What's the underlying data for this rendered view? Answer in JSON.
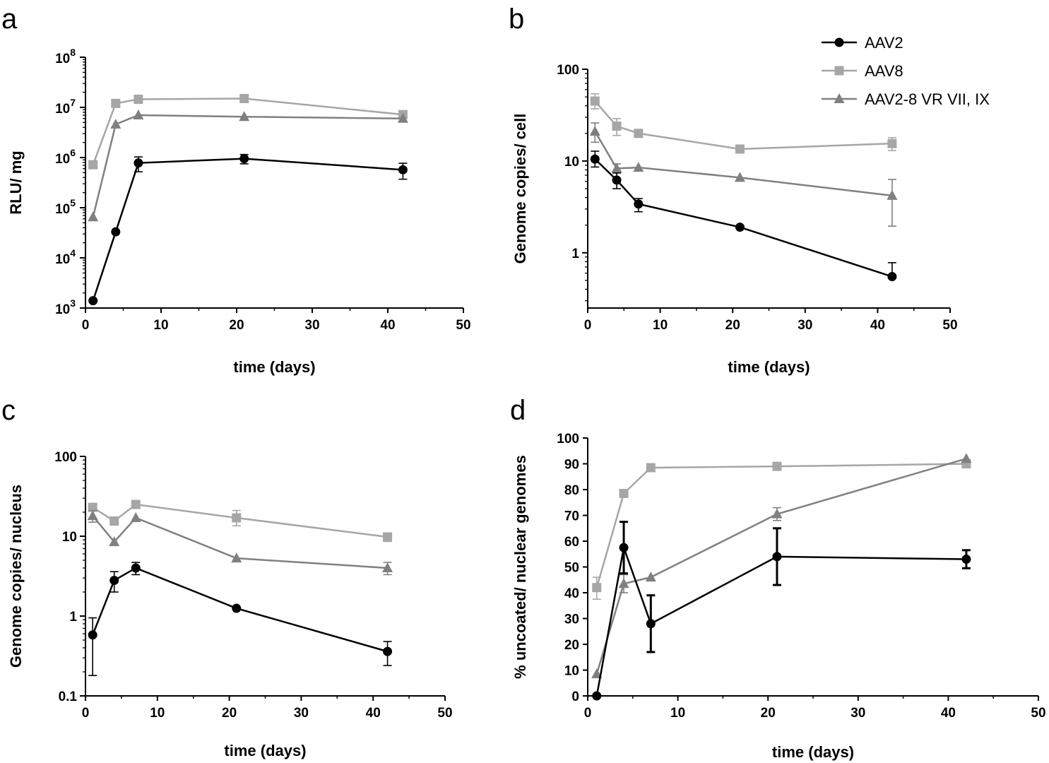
{
  "legend": [
    {
      "name": "AAV2",
      "color": "#000000",
      "marker": "circle"
    },
    {
      "name": "AAV8",
      "color": "#a6a6a6",
      "marker": "square"
    },
    {
      "name": "AAV2-8 VR VII, IX",
      "color": "#808080",
      "marker": "triangle"
    }
  ],
  "chart_data": [
    {
      "panel": "a",
      "type": "line",
      "xlabel": "time (days)",
      "ylabel": "RLU/ mg",
      "yscale": "log",
      "xlim": [
        0,
        50
      ],
      "ylim": [
        1000,
        100000000
      ],
      "x_ticks": [
        "0",
        "10",
        "20",
        "30",
        "40",
        "50"
      ],
      "y_ticks": [
        {
          "base": "10",
          "exp": "3"
        },
        {
          "base": "10",
          "exp": "4"
        },
        {
          "base": "10",
          "exp": "5"
        },
        {
          "base": "10",
          "exp": "6"
        },
        {
          "base": "10",
          "exp": "7"
        },
        {
          "base": "10",
          "exp": "8"
        }
      ],
      "series": [
        {
          "name": "AAV2",
          "x": [
            1,
            4,
            7,
            21,
            42
          ],
          "values": [
            1400,
            33000,
            780000,
            950000,
            570000
          ],
          "err_up": [
            0,
            0,
            1030000,
            1150000,
            770000
          ],
          "err_down": [
            0,
            0,
            520000,
            750000,
            370000
          ]
        },
        {
          "name": "AAV8",
          "x": [
            1,
            4,
            7,
            21,
            42
          ],
          "values": [
            720000,
            12000000,
            14500000,
            15000000,
            7200000
          ],
          "err_up": [
            0,
            0,
            0,
            0,
            0
          ],
          "err_down": [
            0,
            0,
            0,
            0,
            0
          ]
        },
        {
          "name": "AAV2-8 VR VII, IX",
          "x": [
            1,
            4,
            7,
            21,
            42
          ],
          "values": [
            65000,
            4600000,
            7000000,
            6500000,
            6000000
          ],
          "err_up": [
            0,
            0,
            0,
            0,
            0
          ],
          "err_down": [
            0,
            0,
            0,
            0,
            0
          ]
        }
      ]
    },
    {
      "panel": "b",
      "type": "line",
      "xlabel": "time (days)",
      "ylabel": "Genome copies/ cell",
      "yscale": "log",
      "xlim": [
        0,
        50
      ],
      "ylim": [
        0.25,
        100
      ],
      "x_ticks": [
        "0",
        "10",
        "20",
        "30",
        "40",
        "50"
      ],
      "y_ticks": [
        "1",
        "10",
        "100"
      ],
      "series": [
        {
          "name": "AAV2",
          "x": [
            1,
            4,
            7,
            21,
            42
          ],
          "values": [
            10.5,
            6.2,
            3.4,
            1.9,
            0.55
          ],
          "err_up": [
            12.8,
            7.4,
            3.9,
            0,
            0.78
          ],
          "err_down": [
            8.6,
            5.0,
            2.8,
            0,
            0.55
          ]
        },
        {
          "name": "AAV8",
          "x": [
            1,
            4,
            7,
            21,
            42
          ],
          "values": [
            45,
            24,
            20,
            13.5,
            15.5
          ],
          "err_up": [
            54,
            29,
            0,
            0,
            18
          ],
          "err_down": [
            37,
            19,
            0,
            0,
            13
          ]
        },
        {
          "name": "AAV2-8 VR VII, IX",
          "x": [
            1,
            4,
            7,
            21,
            42
          ],
          "values": [
            21,
            8.3,
            8.5,
            6.6,
            4.2
          ],
          "err_up": [
            26,
            9.3,
            0,
            0,
            6.3
          ],
          "err_down": [
            16,
            7.6,
            0,
            0,
            1.95
          ]
        }
      ]
    },
    {
      "panel": "c",
      "type": "line",
      "xlabel": "time (days)",
      "ylabel": "Genome copies/ nucleus",
      "yscale": "log",
      "xlim": [
        0,
        50
      ],
      "ylim": [
        0.1,
        100
      ],
      "x_ticks": [
        "0",
        "10",
        "20",
        "30",
        "40",
        "50"
      ],
      "y_ticks": [
        "0.1",
        "1",
        "10",
        "100"
      ],
      "series": [
        {
          "name": "AAV2",
          "x": [
            1,
            4,
            7,
            21,
            42
          ],
          "values": [
            0.58,
            2.8,
            4.0,
            1.25,
            0.36
          ],
          "err_up": [
            0.95,
            3.6,
            4.7,
            0,
            0.48
          ],
          "err_down": [
            0.18,
            2.0,
            3.3,
            0,
            0.24
          ]
        },
        {
          "name": "AAV8",
          "x": [
            1,
            4,
            7,
            21,
            42
          ],
          "values": [
            23,
            15.5,
            25,
            17,
            9.8
          ],
          "err_up": [
            0,
            0,
            0,
            21,
            11
          ],
          "err_down": [
            0,
            0,
            0,
            13.5,
            8.6
          ]
        },
        {
          "name": "AAV2-8 VR VII, IX",
          "x": [
            1,
            4,
            7,
            21,
            42
          ],
          "values": [
            18,
            8.5,
            17,
            5.3,
            4.0
          ],
          "err_up": [
            21,
            0,
            0,
            0,
            4.7
          ],
          "err_down": [
            15,
            0,
            0,
            0,
            3.3
          ]
        }
      ]
    },
    {
      "panel": "d",
      "type": "line",
      "xlabel": "time (days)",
      "ylabel": "% uncoated/ nuclear genomes",
      "yscale": "linear",
      "xlim": [
        0,
        50
      ],
      "ylim": [
        0,
        100
      ],
      "x_ticks": [
        "0",
        "10",
        "20",
        "30",
        "40",
        "50"
      ],
      "y_ticks": [
        "0",
        "10",
        "20",
        "30",
        "40",
        "50",
        "60",
        "70",
        "80",
        "90",
        "100"
      ],
      "series": [
        {
          "name": "AAV2",
          "x": [
            1,
            4,
            7,
            21,
            42
          ],
          "values": [
            0,
            57.5,
            28,
            54,
            53
          ],
          "err_up": [
            0,
            67.5,
            39,
            65,
            56.5
          ],
          "err_down": [
            0,
            47.5,
            17,
            43,
            49.5
          ]
        },
        {
          "name": "AAV8",
          "x": [
            1,
            4,
            7,
            21,
            42
          ],
          "values": [
            42,
            78.5,
            88.5,
            89,
            90
          ],
          "err_up": [
            46,
            0,
            0,
            0,
            0
          ],
          "err_down": [
            37.5,
            0,
            0,
            0,
            0
          ]
        },
        {
          "name": "AAV2-8 VR VII, IX",
          "x": [
            1,
            4,
            7,
            21,
            42
          ],
          "values": [
            8.5,
            43.5,
            46,
            70.5,
            92
          ],
          "err_up": [
            0,
            47,
            0,
            73,
            0
          ],
          "err_down": [
            0,
            40,
            0,
            68,
            0
          ]
        }
      ]
    }
  ]
}
